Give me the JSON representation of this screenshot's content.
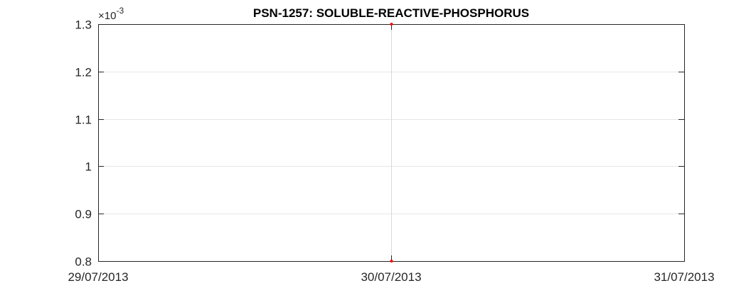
{
  "chart_data": {
    "type": "line",
    "title": "PSN-1257: SOLUBLE-REACTIVE-PHOSPHORUS",
    "xlabel": "",
    "ylabel": "",
    "x_ticks": [
      "29/07/2013",
      "30/07/2013",
      "31/07/2013"
    ],
    "y_ticks": [
      "0.8",
      "0.9",
      "1",
      "1.1",
      "1.2",
      "1.3"
    ],
    "y_multiplier": {
      "base": "×10",
      "exponent": "-3"
    },
    "xlim": [
      "2013-07-29",
      "2013-07-31"
    ],
    "ylim": [
      0.0008,
      0.0013
    ],
    "grid": true,
    "series": [
      {
        "color": "#ff0000",
        "line_color": "#d9d9d9",
        "points": [
          {
            "x": "2013-07-30",
            "y": 0.0013
          },
          {
            "x": "2013-07-30",
            "y": 0.0008
          }
        ]
      }
    ]
  }
}
